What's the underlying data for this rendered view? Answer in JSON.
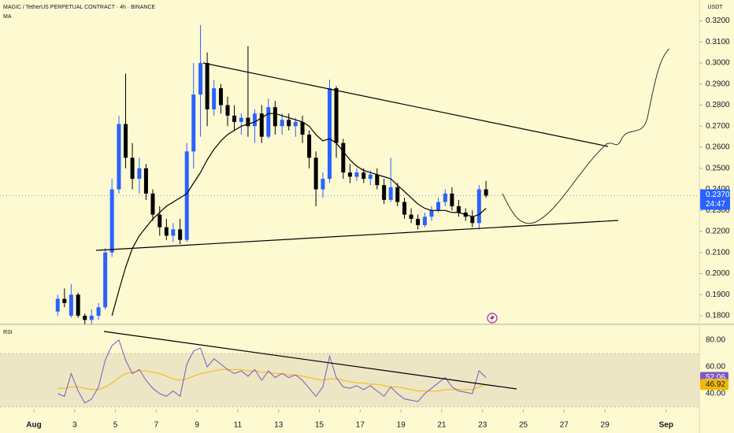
{
  "chart_data": {
    "type": "candlestick",
    "title": "MAGIC / TetherUS PERPETUAL CONTRACT · 4h · BINANCE",
    "currency": "USDT",
    "up_color": "#2962ff",
    "down_color": "#000000",
    "x": [
      2.17,
      2.5,
      2.83,
      3.17,
      3.5,
      3.83,
      4.17,
      4.5,
      4.83,
      5.17,
      5.5,
      5.83,
      6.17,
      6.5,
      6.83,
      7.17,
      7.5,
      7.83,
      8.17,
      8.5,
      8.83,
      9.17,
      9.5,
      9.83,
      10.17,
      10.5,
      10.83,
      11.17,
      11.5,
      11.83,
      12.17,
      12.5,
      12.83,
      13.17,
      13.5,
      13.83,
      14.17,
      14.5,
      14.83,
      15.17,
      15.5,
      15.83,
      16.17,
      16.5,
      16.83,
      17.17,
      17.5,
      17.83,
      18.17,
      18.5,
      18.83,
      19.17,
      19.5,
      19.83,
      20.17,
      20.5,
      20.83,
      21.17,
      21.5,
      21.83,
      22.17,
      22.5,
      22.83,
      23.17
    ],
    "ohlc": [
      [
        0.182,
        0.19,
        0.18,
        0.188
      ],
      [
        0.188,
        0.193,
        0.184,
        0.186
      ],
      [
        0.18,
        0.195,
        0.179,
        0.19
      ],
      [
        0.19,
        0.191,
        0.179,
        0.18
      ],
      [
        0.18,
        0.181,
        0.176,
        0.178
      ],
      [
        0.178,
        0.183,
        0.176,
        0.18
      ],
      [
        0.18,
        0.186,
        0.178,
        0.184
      ],
      [
        0.184,
        0.212,
        0.183,
        0.21
      ],
      [
        0.21,
        0.245,
        0.208,
        0.24
      ],
      [
        0.24,
        0.275,
        0.238,
        0.271
      ],
      [
        0.271,
        0.295,
        0.25,
        0.255
      ],
      [
        0.255,
        0.262,
        0.24,
        0.245
      ],
      [
        0.245,
        0.255,
        0.238,
        0.25
      ],
      [
        0.25,
        0.252,
        0.235,
        0.238
      ],
      [
        0.238,
        0.24,
        0.225,
        0.228
      ],
      [
        0.228,
        0.232,
        0.218,
        0.222
      ],
      [
        0.222,
        0.226,
        0.216,
        0.218
      ],
      [
        0.218,
        0.224,
        0.215,
        0.221
      ],
      [
        0.221,
        0.226,
        0.214,
        0.216
      ],
      [
        0.216,
        0.262,
        0.215,
        0.258
      ],
      [
        0.258,
        0.3,
        0.25,
        0.285
      ],
      [
        0.285,
        0.318,
        0.265,
        0.3
      ],
      [
        0.3,
        0.305,
        0.27,
        0.278
      ],
      [
        0.278,
        0.292,
        0.275,
        0.288
      ],
      [
        0.288,
        0.29,
        0.276,
        0.28
      ],
      [
        0.28,
        0.284,
        0.27,
        0.275
      ],
      [
        0.275,
        0.28,
        0.268,
        0.272
      ],
      [
        0.272,
        0.276,
        0.266,
        0.274
      ],
      [
        0.274,
        0.308,
        0.265,
        0.27
      ],
      [
        0.27,
        0.278,
        0.262,
        0.276
      ],
      [
        0.276,
        0.28,
        0.262,
        0.265
      ],
      [
        0.265,
        0.283,
        0.264,
        0.279
      ],
      [
        0.279,
        0.282,
        0.266,
        0.27
      ],
      [
        0.27,
        0.276,
        0.266,
        0.273
      ],
      [
        0.273,
        0.276,
        0.268,
        0.27
      ],
      [
        0.27,
        0.274,
        0.265,
        0.272
      ],
      [
        0.272,
        0.275,
        0.262,
        0.266
      ],
      [
        0.266,
        0.268,
        0.25,
        0.255
      ],
      [
        0.255,
        0.258,
        0.232,
        0.24
      ],
      [
        0.24,
        0.248,
        0.236,
        0.245
      ],
      [
        0.245,
        0.292,
        0.243,
        0.288
      ],
      [
        0.288,
        0.289,
        0.255,
        0.262
      ],
      [
        0.262,
        0.264,
        0.245,
        0.248
      ],
      [
        0.248,
        0.252,
        0.243,
        0.246
      ],
      [
        0.246,
        0.25,
        0.244,
        0.248
      ],
      [
        0.248,
        0.25,
        0.243,
        0.245
      ],
      [
        0.245,
        0.249,
        0.242,
        0.247
      ],
      [
        0.247,
        0.25,
        0.24,
        0.242
      ],
      [
        0.242,
        0.245,
        0.233,
        0.235
      ],
      [
        0.235,
        0.255,
        0.234,
        0.241
      ],
      [
        0.241,
        0.243,
        0.232,
        0.234
      ],
      [
        0.234,
        0.236,
        0.226,
        0.228
      ],
      [
        0.228,
        0.231,
        0.224,
        0.226
      ],
      [
        0.226,
        0.228,
        0.221,
        0.223
      ],
      [
        0.223,
        0.229,
        0.222,
        0.227
      ],
      [
        0.227,
        0.232,
        0.225,
        0.23
      ],
      [
        0.23,
        0.236,
        0.229,
        0.234
      ],
      [
        0.234,
        0.24,
        0.232,
        0.238
      ],
      [
        0.238,
        0.241,
        0.23,
        0.232
      ],
      [
        0.232,
        0.235,
        0.227,
        0.229
      ],
      [
        0.229,
        0.231,
        0.225,
        0.227
      ],
      [
        0.227,
        0.23,
        0.222,
        0.224
      ],
      [
        0.224,
        0.242,
        0.221,
        0.24
      ],
      [
        0.24,
        0.244,
        0.236,
        0.237
      ]
    ],
    "ma": {
      "name": "MA",
      "color": "#000000",
      "values": [
        null,
        null,
        null,
        null,
        null,
        null,
        null,
        null,
        0.18,
        0.192,
        0.203,
        0.212,
        0.218,
        0.222,
        0.226,
        0.229,
        0.232,
        0.234,
        0.236,
        0.238,
        0.243,
        0.248,
        0.254,
        0.259,
        0.263,
        0.266,
        0.268,
        0.27,
        0.271,
        0.272,
        0.274,
        0.276,
        0.276,
        0.275,
        0.274,
        0.273,
        0.272,
        0.27,
        0.266,
        0.263,
        0.264,
        0.262,
        0.258,
        0.254,
        0.251,
        0.249,
        0.248,
        0.247,
        0.246,
        0.245,
        0.242,
        0.239,
        0.236,
        0.233,
        0.231,
        0.23,
        0.23,
        0.23,
        0.229,
        0.229,
        0.228,
        0.227,
        0.228,
        0.231
      ]
    },
    "xlim": [
      -0.66,
      33.63
    ],
    "xticks": [
      {
        "value": 1,
        "label": "Aug"
      },
      3,
      5,
      7,
      9,
      11,
      13,
      15,
      17,
      19,
      21,
      23,
      25,
      27,
      29,
      {
        "value": 32,
        "label": "Sep"
      }
    ],
    "ylim": [
      0.1759,
      0.3299
    ],
    "yticks": [
      {
        "value": 0.18,
        "label": "0.1800"
      },
      {
        "value": 0.19,
        "label": "0.1900"
      },
      {
        "value": 0.2,
        "label": "0.2000"
      },
      {
        "value": 0.21,
        "label": "0.2100"
      },
      {
        "value": 0.22,
        "label": "0.2200"
      },
      {
        "value": 0.23,
        "label": "0.2300"
      },
      {
        "value": 0.24,
        "label": "0.2400"
      },
      {
        "value": 0.25,
        "label": "0.2500"
      },
      {
        "value": 0.26,
        "label": "0.2600"
      },
      {
        "value": 0.27,
        "label": "0.2700"
      },
      {
        "value": 0.28,
        "label": "0.2800"
      },
      {
        "value": 0.29,
        "label": "0.2900"
      },
      {
        "value": 0.3,
        "label": "0.3000"
      },
      {
        "value": 0.31,
        "label": "0.3100"
      },
      {
        "value": 0.32,
        "label": "0.3200"
      }
    ],
    "last_price": {
      "value": 0.237,
      "label": "0.2370"
    },
    "countdown": "24:47",
    "rsi": {
      "title": "RSI",
      "color": "#7e57c2",
      "ma_color": "#f2b705",
      "band": [
        30,
        70
      ],
      "ylim": [
        28.2,
        90.6
      ],
      "yticks": [
        {
          "value": 80,
          "label": "80.00"
        },
        {
          "value": 60,
          "label": "60.00"
        },
        {
          "value": 40,
          "label": "40.00"
        }
      ],
      "values": [
        40,
        38,
        55,
        42,
        33,
        36,
        45,
        65,
        76,
        80,
        65,
        55,
        58,
        50,
        44,
        40,
        38,
        42,
        38,
        62,
        72,
        74,
        60,
        66,
        62,
        58,
        55,
        57,
        53,
        58,
        50,
        57,
        52,
        55,
        52,
        54,
        50,
        44,
        38,
        45,
        68,
        52,
        45,
        44,
        46,
        43,
        46,
        42,
        38,
        45,
        40,
        36,
        35,
        34,
        40,
        44,
        48,
        52,
        45,
        42,
        41,
        40,
        57,
        52.06
      ],
      "ma_values": [
        44,
        44,
        45,
        45,
        44,
        43,
        43,
        45,
        48,
        52,
        55,
        56,
        57,
        57,
        56,
        55,
        53,
        51,
        50,
        51,
        53,
        55,
        56,
        57,
        58,
        58,
        58,
        58,
        57,
        57,
        56,
        56,
        55,
        55,
        54,
        54,
        53,
        52,
        51,
        50,
        51,
        51,
        50,
        49,
        48,
        48,
        47,
        47,
        46,
        45,
        45,
        44,
        43,
        42,
        42,
        42,
        42,
        43,
        43,
        43,
        43,
        43,
        45,
        46.92
      ],
      "last_label": {
        "value": 52.06,
        "label": "52.06"
      },
      "ma_last_label": {
        "value": 46.92,
        "label": "46.92"
      }
    }
  }
}
